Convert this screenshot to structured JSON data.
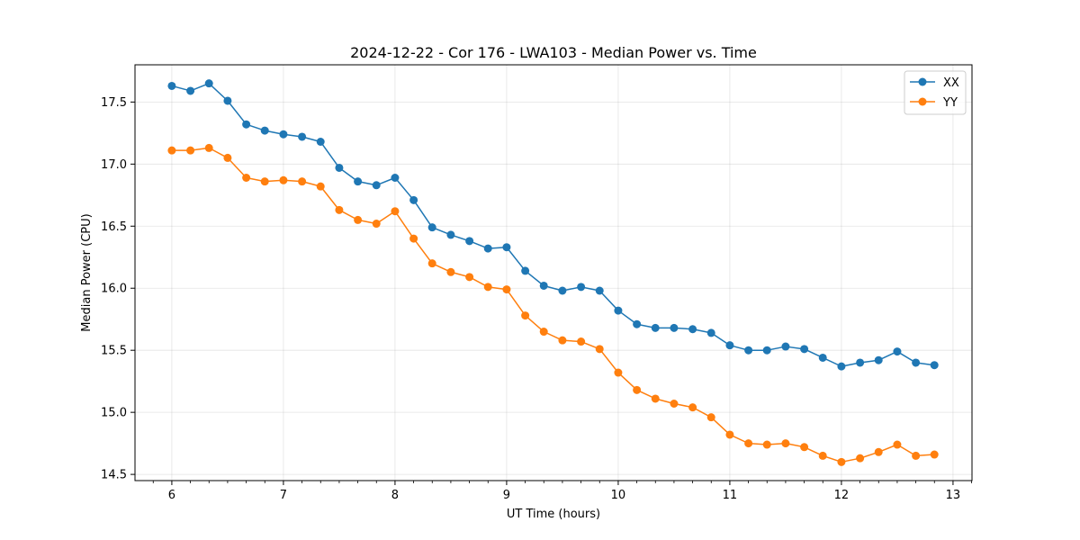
{
  "chart_data": {
    "type": "line",
    "title": "2024-12-22 - Cor 176 - LWA103 - Median Power vs. Time",
    "xlabel": "UT Time (hours)",
    "ylabel": "Median Power (CPU)",
    "xlim": [
      5.67,
      13.17
    ],
    "ylim": [
      14.45,
      17.8
    ],
    "xticks": [
      6,
      7,
      8,
      9,
      10,
      11,
      12,
      13
    ],
    "xtick_labels": [
      "6",
      "7",
      "8",
      "9",
      "10",
      "11",
      "12",
      "13"
    ],
    "yticks": [
      14.5,
      15.0,
      15.5,
      16.0,
      16.5,
      17.0,
      17.5
    ],
    "ytick_labels": [
      "14.5",
      "15.0",
      "15.5",
      "16.0",
      "16.5",
      "17.0",
      "17.5"
    ],
    "grid": true,
    "legend_position": "top-right",
    "x": [
      6.0,
      6.167,
      6.333,
      6.5,
      6.667,
      6.833,
      7.0,
      7.167,
      7.333,
      7.5,
      7.667,
      7.833,
      8.0,
      8.167,
      8.333,
      8.5,
      8.667,
      8.833,
      9.0,
      9.167,
      9.333,
      9.5,
      9.667,
      9.833,
      10.0,
      10.167,
      10.333,
      10.5,
      10.667,
      10.833,
      11.0,
      11.167,
      11.333,
      11.5,
      11.667,
      11.833,
      12.0,
      12.167,
      12.333,
      12.5,
      12.667,
      12.833
    ],
    "series": [
      {
        "name": "XX",
        "color": "#1f77b4",
        "values": [
          17.63,
          17.59,
          17.65,
          17.51,
          17.32,
          17.27,
          17.24,
          17.22,
          17.18,
          16.97,
          16.86,
          16.83,
          16.89,
          16.71,
          16.49,
          16.43,
          16.38,
          16.32,
          16.33,
          16.14,
          16.02,
          15.98,
          16.01,
          15.98,
          15.82,
          15.71,
          15.68,
          15.68,
          15.67,
          15.64,
          15.54,
          15.5,
          15.5,
          15.53,
          15.51,
          15.44,
          15.37,
          15.4,
          15.42,
          15.49,
          15.4,
          15.38
        ]
      },
      {
        "name": "YY",
        "color": "#ff7f0e",
        "values": [
          17.11,
          17.11,
          17.13,
          17.05,
          16.89,
          16.86,
          16.87,
          16.86,
          16.82,
          16.63,
          16.55,
          16.52,
          16.62,
          16.4,
          16.2,
          16.13,
          16.09,
          16.01,
          15.99,
          15.78,
          15.65,
          15.58,
          15.57,
          15.51,
          15.32,
          15.18,
          15.11,
          15.07,
          15.04,
          14.96,
          14.82,
          14.75,
          14.74,
          14.75,
          14.72,
          14.65,
          14.6,
          14.63,
          14.68,
          14.74,
          14.65,
          14.66
        ]
      }
    ]
  }
}
